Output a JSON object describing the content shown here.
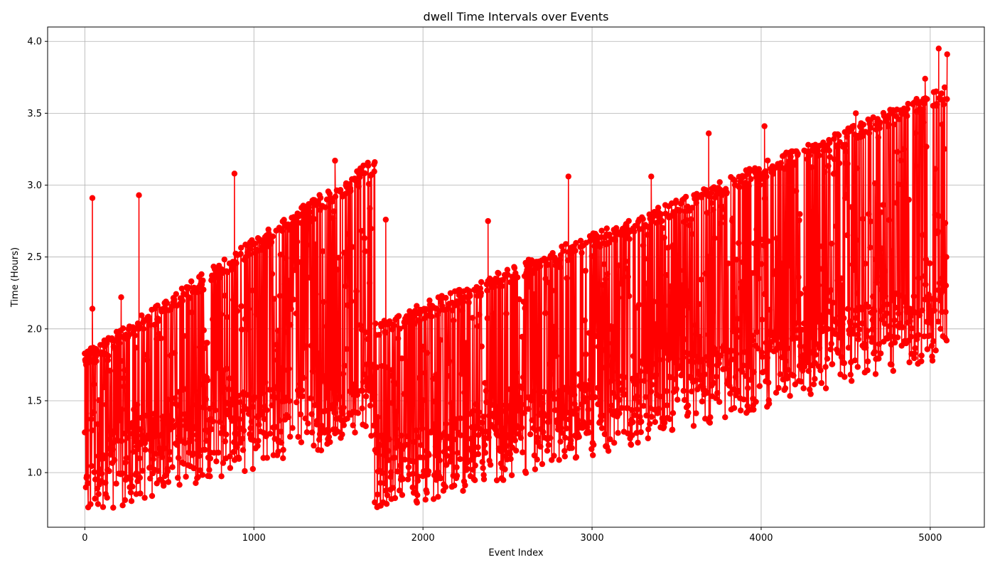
{
  "chart_data": {
    "type": "line",
    "title": "dwell Time Intervals over Events",
    "xlabel": "Event Index",
    "ylabel": "Time (Hours)",
    "xlim": [
      -220,
      5320
    ],
    "ylim": [
      0.62,
      4.1
    ],
    "x_ticks": [
      0,
      1000,
      2000,
      3000,
      4000,
      5000
    ],
    "x_tick_labels": [
      "0",
      "1000",
      "2000",
      "3000",
      "4000",
      "5000"
    ],
    "y_ticks": [
      1.0,
      1.5,
      2.0,
      2.5,
      3.0,
      3.5,
      4.0
    ],
    "y_tick_labels": [
      "1.0",
      "1.5",
      "2.0",
      "2.5",
      "3.0",
      "3.5",
      "4.0"
    ],
    "grid": true,
    "marker": "circle",
    "series": [
      {
        "color": "#ff0000",
        "n_points": 5100,
        "x_range": [
          0,
          5100
        ],
        "segments": [
          {
            "x_start": 0,
            "x_end": 1715,
            "band_low_start": 0.85,
            "band_low_end": 1.4,
            "band_high_start": 1.8,
            "band_high_end": 3.15
          },
          {
            "x_start": 1715,
            "x_end": 5100,
            "band_low_start": 0.85,
            "band_low_end": 1.95,
            "band_high_start": 2.0,
            "band_high_end": 3.65
          }
        ],
        "notable_points": [
          {
            "x": 0,
            "y": 1.28
          },
          {
            "x": 45,
            "y": 2.91
          },
          {
            "x": 45,
            "y": 2.14
          },
          {
            "x": 320,
            "y": 2.93
          },
          {
            "x": 215,
            "y": 2.22
          },
          {
            "x": 885,
            "y": 3.08
          },
          {
            "x": 1480,
            "y": 3.17
          },
          {
            "x": 1715,
            "y": 3.16
          },
          {
            "x": 1750,
            "y": 0.77
          },
          {
            "x": 1780,
            "y": 2.76
          },
          {
            "x": 2385,
            "y": 2.75
          },
          {
            "x": 2860,
            "y": 3.06
          },
          {
            "x": 3350,
            "y": 3.06
          },
          {
            "x": 3690,
            "y": 3.36
          },
          {
            "x": 4020,
            "y": 3.41
          },
          {
            "x": 4560,
            "y": 3.5
          },
          {
            "x": 4970,
            "y": 3.74
          },
          {
            "x": 5050,
            "y": 3.95
          },
          {
            "x": 5100,
            "y": 3.91
          }
        ]
      }
    ]
  }
}
